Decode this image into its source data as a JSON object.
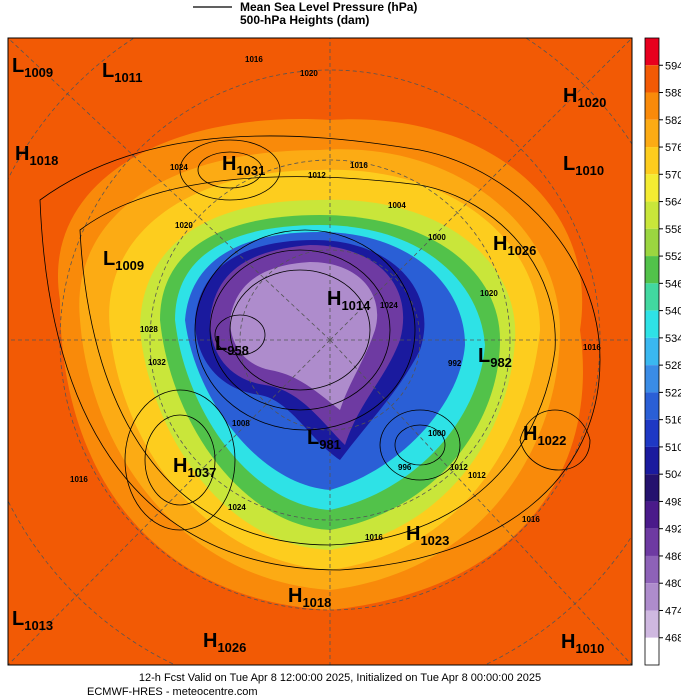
{
  "legend": {
    "pressure": "Mean Sea Level Pressure (hPa)",
    "heights": "500-hPa Heights (dam)"
  },
  "colorbar": {
    "ticks": [
      594,
      588,
      582,
      576,
      570,
      564,
      558,
      552,
      546,
      540,
      534,
      528,
      522,
      516,
      510,
      504,
      498,
      492,
      486,
      480,
      474,
      468
    ],
    "colors": [
      "#e8001e",
      "#f25a05",
      "#f98a0a",
      "#fcab14",
      "#fdcd1e",
      "#f4ec32",
      "#c9e63a",
      "#9bd640",
      "#52c24a",
      "#42d8a0",
      "#2ee2e6",
      "#3ab8f0",
      "#3a8ce6",
      "#2a5fd6",
      "#1e38c4",
      "#1a1a9e",
      "#24126e",
      "#4a1a8a",
      "#6e3aa2",
      "#8e62b8",
      "#ae8ccc",
      "#cfb8e0",
      "#ffffff"
    ]
  },
  "centers": [
    {
      "letter": "L",
      "value": 1009
    },
    {
      "letter": "L",
      "value": 1011
    },
    {
      "letter": "H",
      "value": 1020
    },
    {
      "letter": "H",
      "value": 1018
    },
    {
      "letter": "H",
      "value": 1031
    },
    {
      "letter": "L",
      "value": 1010
    },
    {
      "letter": "H",
      "value": 1026
    },
    {
      "letter": "L",
      "value": 1009
    },
    {
      "letter": "H",
      "value": 1014
    },
    {
      "letter": "L",
      "value": 958
    },
    {
      "letter": "L",
      "value": 982
    },
    {
      "letter": "L",
      "value": 981
    },
    {
      "letter": "H",
      "value": 1022
    },
    {
      "letter": "H",
      "value": 1037
    },
    {
      "letter": "H",
      "value": 1023
    },
    {
      "letter": "H",
      "value": 1018
    },
    {
      "letter": "L",
      "value": 1013
    },
    {
      "letter": "H",
      "value": 1026
    },
    {
      "letter": "H",
      "value": 1010
    }
  ],
  "contour_labels": [
    1016,
    1020,
    1024,
    1020,
    1016,
    1012,
    1004,
    1000,
    992,
    1020,
    1016,
    1024,
    1028,
    1032,
    1016,
    1008,
    1012,
    1016,
    1000,
    996,
    1012,
    1016,
    1024
  ],
  "footer": {
    "line1": "12-h Fcst Valid on Tue Apr  8 12:00:00 2025, Initialized on Tue Apr  8 00:00:00 2025",
    "line2": "ECMWF-HRES  - meteocentre.com"
  }
}
